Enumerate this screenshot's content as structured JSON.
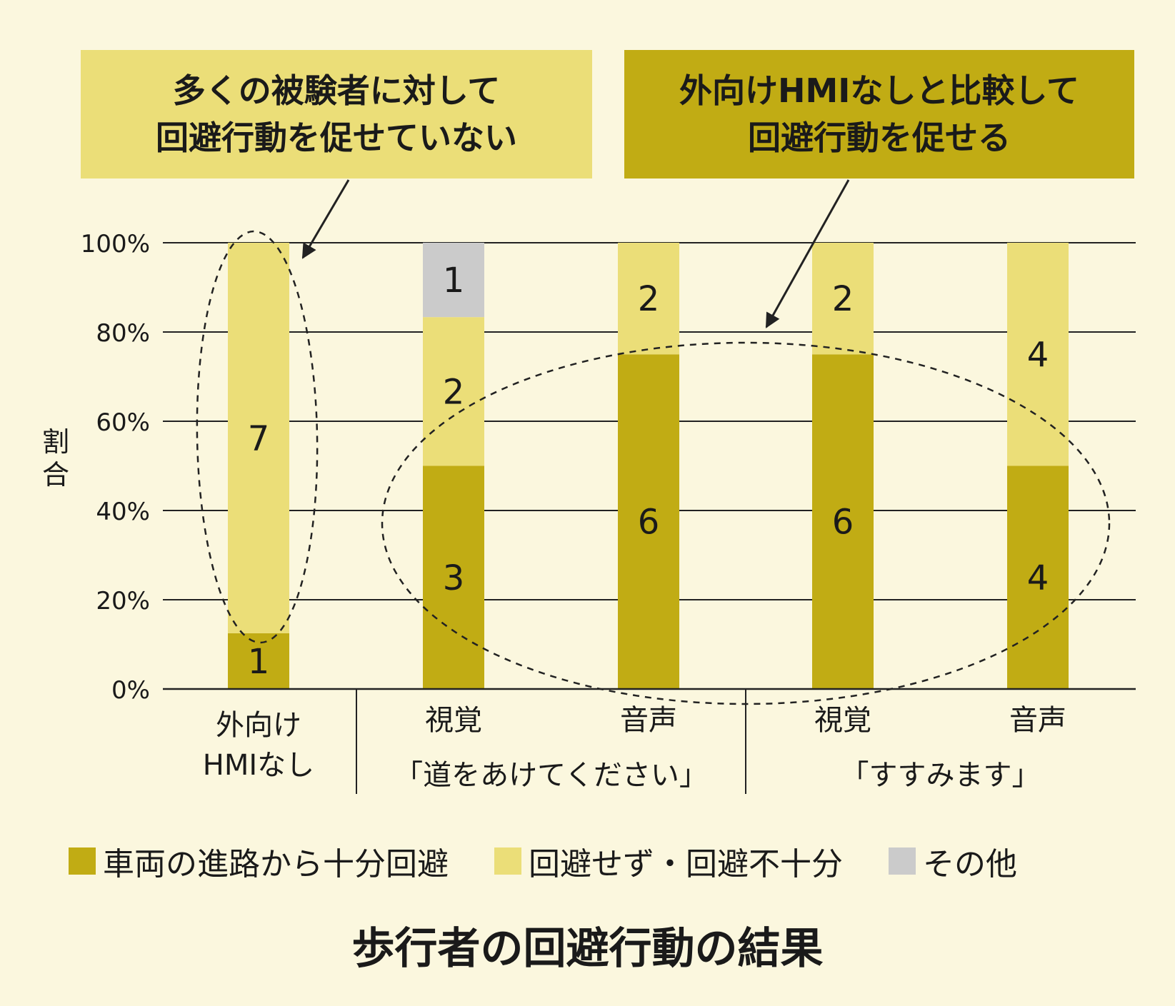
{
  "chart_data": {
    "type": "bar",
    "stacked": true,
    "normalized": true,
    "title": "歩行者の回避行動の結果",
    "ylabel": "割合",
    "ylim": [
      0,
      100
    ],
    "yticks": [
      "0%",
      "20%",
      "40%",
      "60%",
      "80%",
      "100%"
    ],
    "grid": true,
    "legend_position": "bottom",
    "categories": [
      [
        "外向け",
        "HMIなし"
      ],
      [
        "視覚"
      ],
      [
        "音声"
      ],
      [
        "視覚"
      ],
      [
        "音声"
      ]
    ],
    "groups": [
      {
        "label": "「道をあけてください」",
        "categories": [
          1,
          2
        ]
      },
      {
        "label": "「すすみます」",
        "categories": [
          3,
          4
        ]
      }
    ],
    "series": [
      {
        "name": "車両の進路から十分回避",
        "color": "#c1ac14",
        "values": [
          1,
          3,
          6,
          6,
          4
        ]
      },
      {
        "name": "回避せず・回避不十分",
        "color": "#ebde78",
        "values": [
          7,
          2,
          2,
          2,
          4
        ]
      },
      {
        "name": "その他",
        "color": "#cbcbcb",
        "values": [
          0,
          1,
          0,
          0,
          0
        ]
      }
    ],
    "annotations": [
      {
        "text": [
          "多くの被験者に対して",
          "回避行動を促せていない"
        ],
        "color": "#ebde78",
        "target_categories": [
          0
        ]
      },
      {
        "text": [
          "外向けHMIなしと比較して",
          "回避行動を促せる"
        ],
        "color": "#c1ac14",
        "target_categories": [
          1,
          2,
          3,
          4
        ]
      }
    ]
  }
}
